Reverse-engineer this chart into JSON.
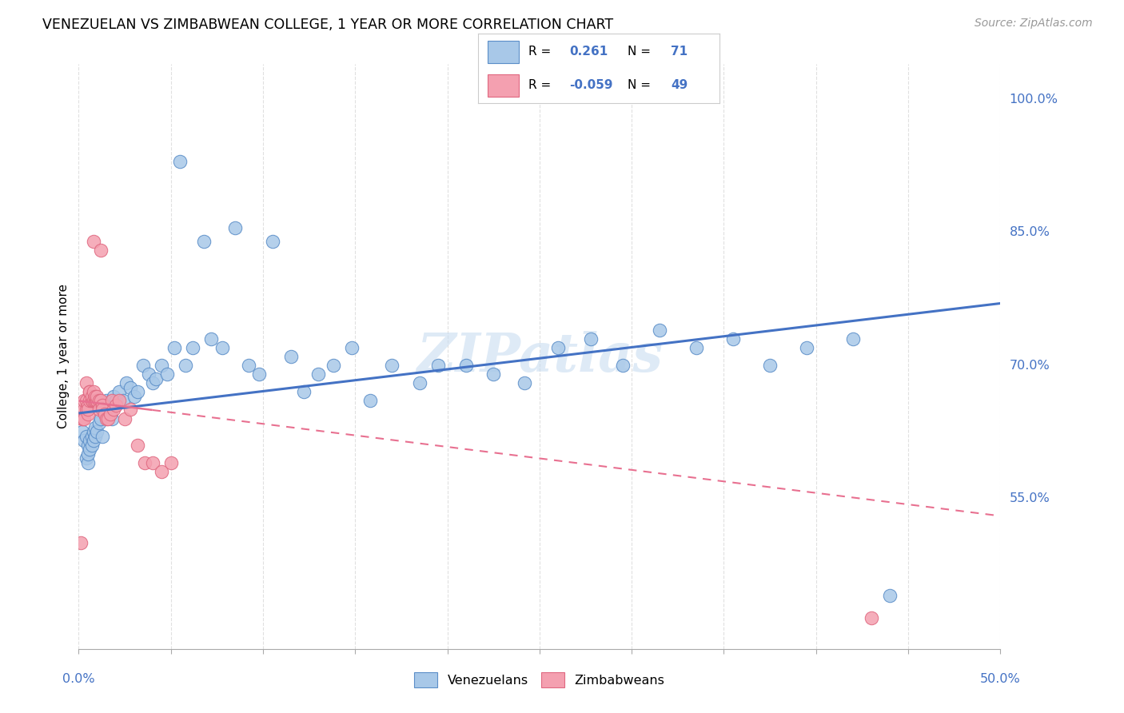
{
  "title": "VENEZUELAN VS ZIMBABWEAN COLLEGE, 1 YEAR OR MORE CORRELATION CHART",
  "source": "Source: ZipAtlas.com",
  "ylabel": "College, 1 year or more",
  "yticks_labels": [
    "100.0%",
    "85.0%",
    "70.0%",
    "55.0%"
  ],
  "ytick_vals": [
    1.0,
    0.85,
    0.7,
    0.55
  ],
  "xmin": 0.0,
  "xmax": 0.5,
  "ymin": 0.38,
  "ymax": 1.04,
  "R_venezuelan": 0.261,
  "N_venezuelan": 71,
  "R_zimbabwean": -0.059,
  "N_zimbabwean": 49,
  "blue_fill": "#A8C8E8",
  "blue_edge": "#5B8EC8",
  "pink_fill": "#F4A0B0",
  "pink_edge": "#E06880",
  "blue_line": "#4472C4",
  "pink_line": "#E87090",
  "watermark_color": "#C8DCF0",
  "grid_color": "#DDDDDD",
  "venezuelan_x": [
    0.002,
    0.003,
    0.004,
    0.004,
    0.005,
    0.005,
    0.005,
    0.006,
    0.006,
    0.007,
    0.007,
    0.008,
    0.008,
    0.009,
    0.009,
    0.01,
    0.011,
    0.012,
    0.013,
    0.014,
    0.015,
    0.016,
    0.017,
    0.018,
    0.019,
    0.02,
    0.022,
    0.024,
    0.026,
    0.028,
    0.03,
    0.032,
    0.035,
    0.038,
    0.04,
    0.042,
    0.045,
    0.048,
    0.052,
    0.055,
    0.058,
    0.062,
    0.068,
    0.072,
    0.078,
    0.085,
    0.092,
    0.098,
    0.105,
    0.115,
    0.122,
    0.13,
    0.138,
    0.148,
    0.158,
    0.17,
    0.185,
    0.195,
    0.21,
    0.225,
    0.242,
    0.26,
    0.278,
    0.295,
    0.315,
    0.335,
    0.355,
    0.375,
    0.395,
    0.42,
    0.44
  ],
  "venezuelan_y": [
    0.625,
    0.615,
    0.62,
    0.595,
    0.59,
    0.6,
    0.61,
    0.615,
    0.605,
    0.62,
    0.61,
    0.625,
    0.615,
    0.62,
    0.63,
    0.625,
    0.635,
    0.64,
    0.62,
    0.65,
    0.66,
    0.655,
    0.645,
    0.64,
    0.665,
    0.66,
    0.67,
    0.66,
    0.68,
    0.675,
    0.665,
    0.67,
    0.7,
    0.69,
    0.68,
    0.685,
    0.7,
    0.69,
    0.72,
    0.93,
    0.7,
    0.72,
    0.84,
    0.73,
    0.72,
    0.855,
    0.7,
    0.69,
    0.84,
    0.71,
    0.67,
    0.69,
    0.7,
    0.72,
    0.66,
    0.7,
    0.68,
    0.7,
    0.7,
    0.69,
    0.68,
    0.72,
    0.73,
    0.7,
    0.74,
    0.72,
    0.73,
    0.7,
    0.72,
    0.73,
    0.44
  ],
  "zimbabwean_x": [
    0.001,
    0.002,
    0.002,
    0.003,
    0.003,
    0.003,
    0.004,
    0.004,
    0.004,
    0.005,
    0.005,
    0.005,
    0.006,
    0.006,
    0.006,
    0.007,
    0.007,
    0.007,
    0.008,
    0.008,
    0.008,
    0.009,
    0.009,
    0.009,
    0.01,
    0.01,
    0.01,
    0.011,
    0.011,
    0.012,
    0.012,
    0.013,
    0.013,
    0.014,
    0.015,
    0.016,
    0.017,
    0.018,
    0.019,
    0.02,
    0.022,
    0.025,
    0.028,
    0.032,
    0.036,
    0.04,
    0.045,
    0.05,
    0.43
  ],
  "zimbabwean_y": [
    0.5,
    0.64,
    0.64,
    0.65,
    0.64,
    0.66,
    0.65,
    0.66,
    0.68,
    0.645,
    0.655,
    0.65,
    0.66,
    0.67,
    0.67,
    0.66,
    0.66,
    0.665,
    0.66,
    0.67,
    0.84,
    0.66,
    0.66,
    0.665,
    0.66,
    0.66,
    0.665,
    0.66,
    0.65,
    0.66,
    0.83,
    0.655,
    0.65,
    0.645,
    0.64,
    0.64,
    0.645,
    0.66,
    0.65,
    0.655,
    0.66,
    0.64,
    0.65,
    0.61,
    0.59,
    0.59,
    0.58,
    0.59,
    0.415
  ],
  "ven_line_x0": 0.0,
  "ven_line_y0": 0.646,
  "ven_line_x1": 0.5,
  "ven_line_y1": 0.77,
  "zim_line_x0": 0.0,
  "zim_line_y0": 0.66,
  "zim_line_x1": 0.5,
  "zim_line_y1": 0.53
}
